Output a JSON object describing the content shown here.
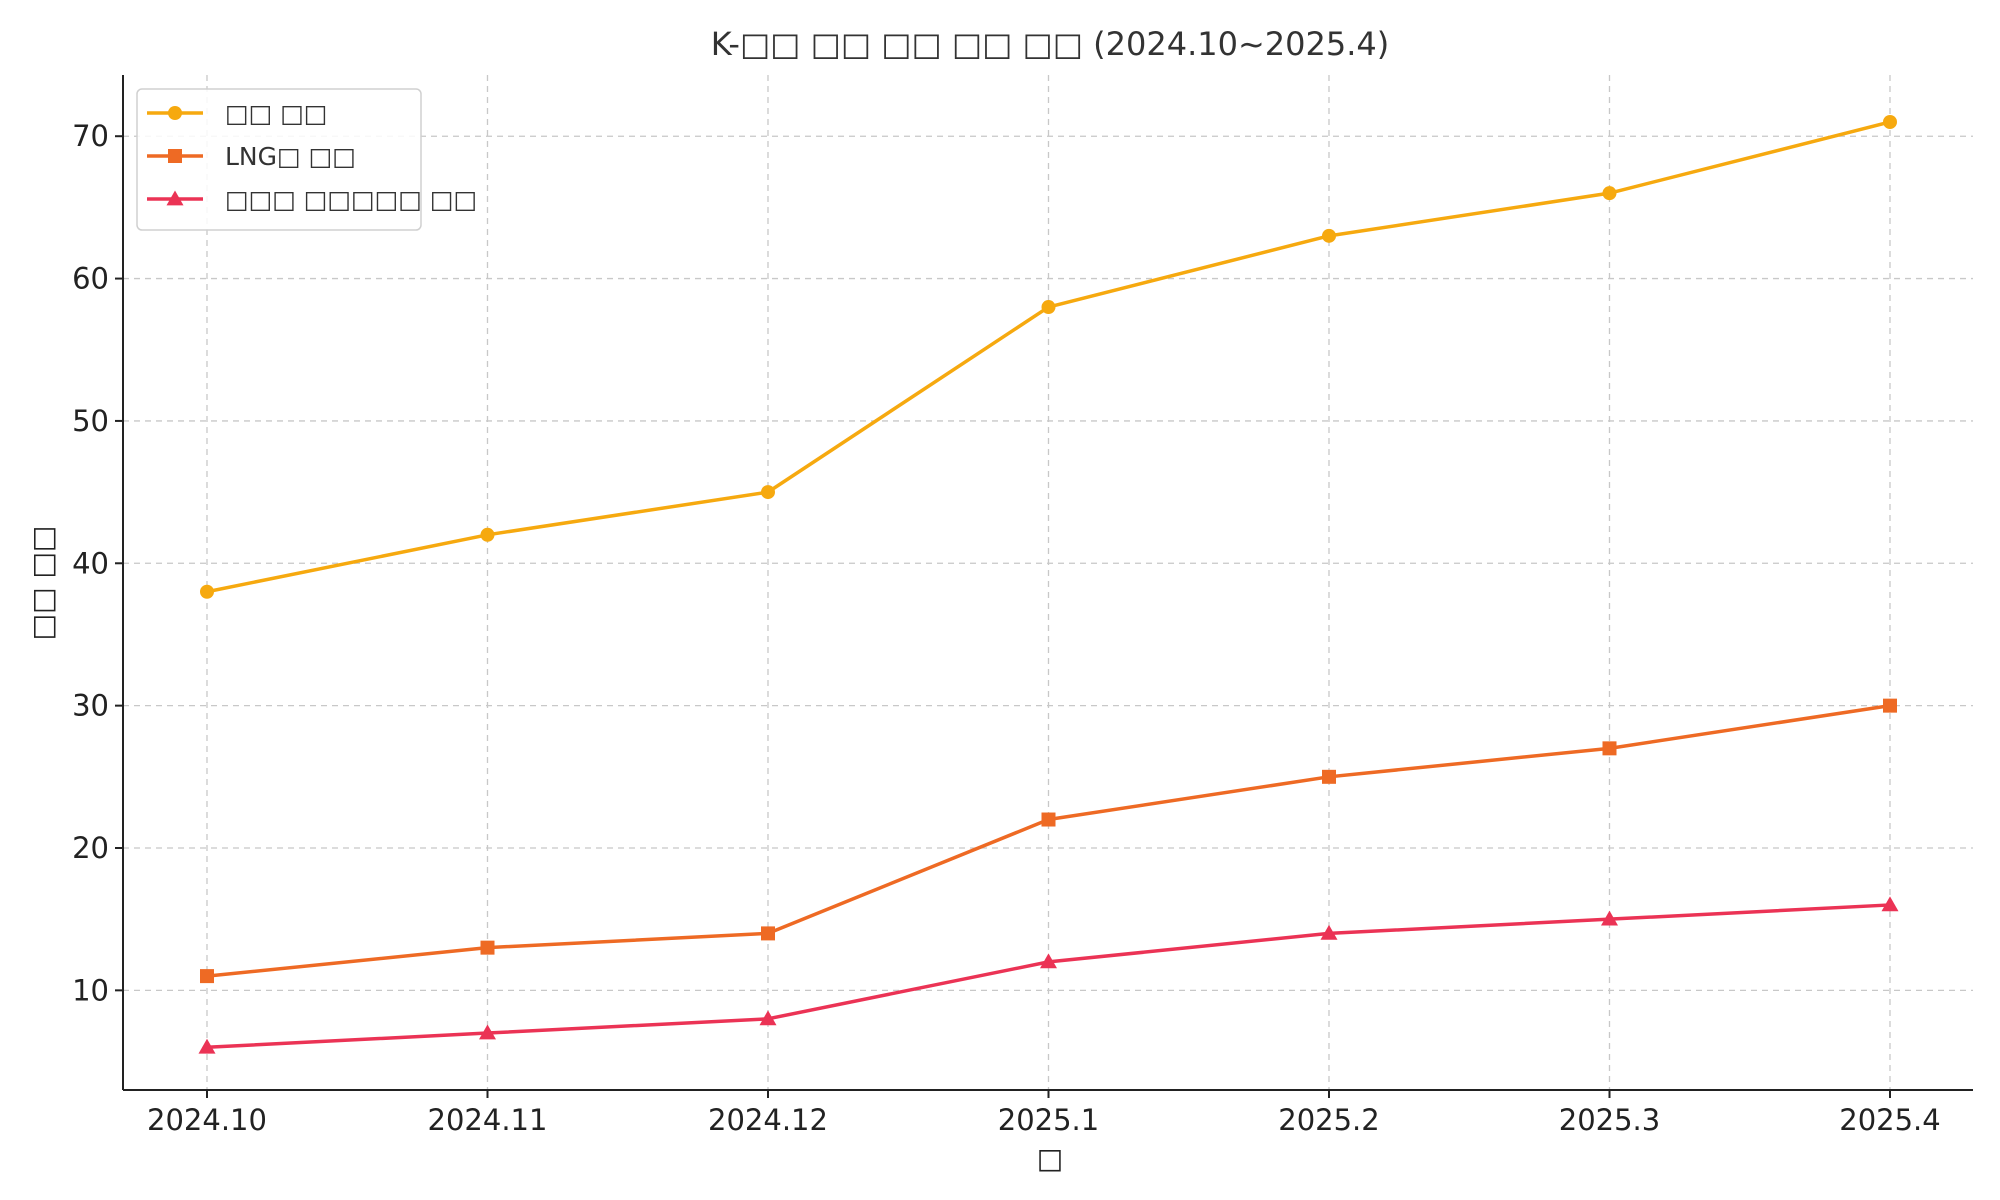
{
  "chart_data": {
    "type": "line",
    "title": "K-□□ □□ □□ □□ □□ (2024.10~2025.4)",
    "xlabel": "□",
    "ylabel": "□□ □□",
    "categories": [
      "2024.10",
      "2024.11",
      "2024.12",
      "2025.1",
      "2025.2",
      "2025.3",
      "2025.4"
    ],
    "ylim": [
      3,
      74.3
    ],
    "yticks": [
      10,
      20,
      30,
      40,
      50,
      60,
      70
    ],
    "grid": true,
    "legend_position": "top-left",
    "series": [
      {
        "name": "□□ □□",
        "color": "#F6A90F",
        "marker": "circle",
        "values": [
          38,
          42,
          45,
          58,
          63,
          66,
          71
        ]
      },
      {
        "name": "LNG□ □□",
        "color": "#EE6A24",
        "marker": "square",
        "values": [
          11,
          13,
          14,
          22,
          25,
          27,
          30
        ]
      },
      {
        "name": "□□□ □□□□□ □□",
        "color": "#EB3355",
        "marker": "triangle",
        "values": [
          6,
          7,
          8,
          12,
          14,
          15,
          16
        ]
      }
    ]
  }
}
